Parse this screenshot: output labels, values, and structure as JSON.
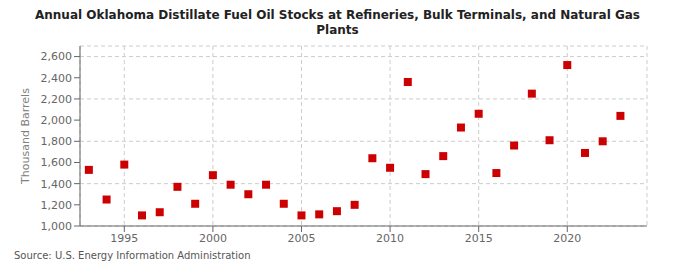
{
  "chart_data": {
    "type": "scatter",
    "title": "Annual Oklahoma Distillate Fuel Oil Stocks at Refineries, Bulk Terminals, and Natural Gas\nPlants",
    "y_label": "Thousand Barrels",
    "annotations": [
      "Source: U.S. Energy Information Administration"
    ],
    "x": [
      1993,
      1994,
      1995,
      1996,
      1997,
      1998,
      1999,
      2000,
      2001,
      2002,
      2003,
      2004,
      2005,
      2006,
      2007,
      2008,
      2009,
      2010,
      2011,
      2012,
      2013,
      2014,
      2015,
      2016,
      2017,
      2018,
      2019,
      2020,
      2021,
      2022,
      2023
    ],
    "values": [
      1530,
      1250,
      1580,
      1100,
      1130,
      1370,
      1210,
      1480,
      1390,
      1300,
      1390,
      1210,
      1100,
      1110,
      1140,
      1200,
      1640,
      1550,
      2360,
      1490,
      1660,
      1930,
      2060,
      1500,
      1760,
      2250,
      1810,
      2520,
      1690,
      1800,
      2040
    ],
    "color": "#cc0000",
    "marker": "square",
    "xlim": [
      1992.5,
      2024.5
    ],
    "xticks": [
      1995,
      2000,
      2005,
      2010,
      2015,
      2020
    ],
    "ylim": [
      1000,
      2700
    ],
    "yticks": [
      {
        "value": 1000,
        "label": "1,000"
      },
      {
        "value": 1200,
        "label": "1,200"
      },
      {
        "value": 1400,
        "label": "1,400"
      },
      {
        "value": 1600,
        "label": "1,600"
      },
      {
        "value": 1800,
        "label": "1,800"
      },
      {
        "value": 2000,
        "label": "2,000"
      },
      {
        "value": 2200,
        "label": "2,200"
      },
      {
        "value": 2400,
        "label": "2,400"
      },
      {
        "value": 2600,
        "label": "2,600"
      }
    ],
    "grid": true
  }
}
